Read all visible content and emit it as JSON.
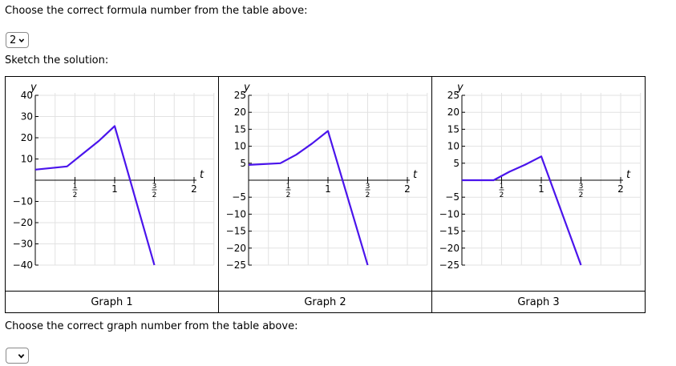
{
  "question": {
    "formula_prompt": "Choose the correct formula number from the table above:",
    "formula_selected": "2",
    "sketch_prompt": "Sketch the solution:",
    "graph_prompt": "Choose the correct graph number from the table above:",
    "graph_selected": ""
  },
  "graphs": [
    {
      "label": "Graph 1"
    },
    {
      "label": "Graph 2"
    },
    {
      "label": "Graph 3"
    }
  ],
  "chart_data": [
    {
      "type": "line",
      "xlabel": "t",
      "ylabel": "y",
      "xlim": [
        0,
        2
      ],
      "ylim": [
        -40,
        40
      ],
      "x_ticks": [
        {
          "v": 0.5,
          "num": "1",
          "den": "2"
        },
        {
          "v": 1,
          "label": "1"
        },
        {
          "v": 1.5,
          "num": "3",
          "den": "2"
        },
        {
          "v": 2,
          "label": "2"
        }
      ],
      "y_ticks": [
        40,
        30,
        20,
        10,
        -10,
        -20,
        -30,
        -40
      ],
      "grid": true,
      "series": [
        {
          "x": [
            0,
            0.4,
            0.6,
            0.8,
            1,
            1.5
          ],
          "y": [
            5,
            6.5,
            12.5,
            18.5,
            25.5,
            -40
          ]
        }
      ],
      "color": "#4a14ec"
    },
    {
      "type": "line",
      "xlabel": "t",
      "ylabel": "y",
      "xlim": [
        0,
        2
      ],
      "ylim": [
        -25,
        25
      ],
      "x_ticks": [
        {
          "v": 0.5,
          "num": "1",
          "den": "2"
        },
        {
          "v": 1,
          "label": "1"
        },
        {
          "v": 1.5,
          "num": "3",
          "den": "2"
        },
        {
          "v": 2,
          "label": "2"
        }
      ],
      "y_ticks": [
        25,
        20,
        15,
        10,
        5,
        -5,
        -10,
        -15,
        -20,
        -25
      ],
      "grid": true,
      "series": [
        {
          "x": [
            0,
            0.4,
            0.6,
            0.8,
            1,
            1.5
          ],
          "y": [
            4.5,
            5,
            7.5,
            10.8,
            14.5,
            -25
          ]
        }
      ],
      "color": "#4a14ec"
    },
    {
      "type": "line",
      "xlabel": "t",
      "ylabel": "y",
      "xlim": [
        0,
        2
      ],
      "ylim": [
        -25,
        25
      ],
      "x_ticks": [
        {
          "v": 0.5,
          "num": "1",
          "den": "2"
        },
        {
          "v": 1,
          "label": "1"
        },
        {
          "v": 1.5,
          "num": "3",
          "den": "2"
        },
        {
          "v": 2,
          "label": "2"
        }
      ],
      "y_ticks": [
        25,
        20,
        15,
        10,
        5,
        -5,
        -10,
        -15,
        -20,
        -25
      ],
      "grid": true,
      "series": [
        {
          "x": [
            0,
            0.4,
            0.6,
            0.8,
            1,
            1.5
          ],
          "y": [
            0,
            0,
            2.5,
            4.6,
            7,
            -25
          ]
        }
      ],
      "color": "#4a14ec"
    }
  ]
}
